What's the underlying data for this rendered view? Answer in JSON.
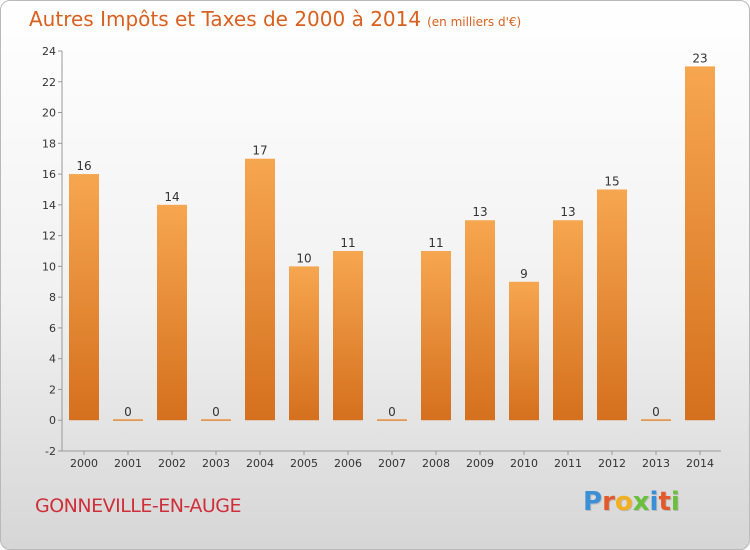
{
  "header": {
    "title": "Autres Impôts et Taxes de 2000 à 2014",
    "unit": "(en milliers d'€)"
  },
  "footer": {
    "place": "GONNEVILLE-EN-AUGE",
    "logo_letters": [
      "P",
      "r",
      "o",
      "x",
      "i",
      "t",
      "i"
    ]
  },
  "colors": {
    "title": "#d9601e",
    "place": "#cf2f3a",
    "bar_top": "#f7a650",
    "bar_bottom": "#d4701e",
    "logo": [
      "#3a8fd6",
      "#e25a2b",
      "#f2b01e",
      "#6abf3c",
      "#3a8fd6",
      "#e25a2b",
      "#6abf3c"
    ]
  },
  "chart_data": {
    "type": "bar",
    "categories": [
      "2000",
      "2001",
      "2002",
      "2003",
      "2004",
      "2005",
      "2006",
      "2007",
      "2008",
      "2009",
      "2010",
      "2011",
      "2012",
      "2013",
      "2014"
    ],
    "values": [
      16,
      0,
      14,
      0,
      17,
      10,
      11,
      0,
      11,
      13,
      9,
      13,
      15,
      0,
      23
    ],
    "value_labels": [
      "16",
      "0",
      "14",
      "0",
      "17",
      "10",
      "11",
      "0",
      "11",
      "13",
      "9",
      "13",
      "15",
      "0",
      "23"
    ],
    "title": "Autres Impôts et Taxes de 2000 à 2014",
    "xlabel": "",
    "ylabel": "",
    "ylim": [
      -2,
      24
    ],
    "yticks": [
      -2,
      0,
      2,
      4,
      6,
      8,
      10,
      12,
      14,
      16,
      18,
      20,
      22,
      24
    ],
    "grid": false,
    "legend": "none"
  }
}
